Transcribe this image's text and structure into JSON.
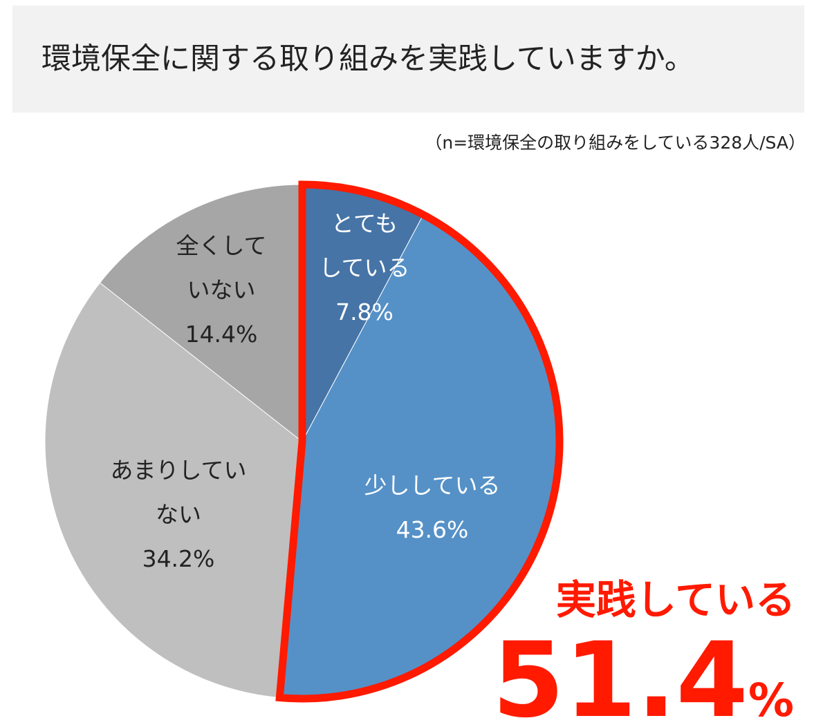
{
  "chart_data": {
    "type": "pie",
    "title": "環境保全に関する取り組みを実践していますか。",
    "subtitle": "（n=環境保全の取り組みをしている328人/SA）",
    "categories": [
      "とても\nしている",
      "少ししている",
      "あまりしてい\nない",
      "全くして\nいない"
    ],
    "values": [
      7.8,
      43.6,
      34.2,
      14.4
    ],
    "value_labels": [
      "7.8%",
      "43.6%",
      "34.2%",
      "14.4%"
    ],
    "colors": [
      "#4674a6",
      "#5591c7",
      "#bfbfbf",
      "#a6a6a6"
    ],
    "label_colors": [
      "#ffffff",
      "#ffffff",
      "#222222",
      "#222222"
    ],
    "highlight": {
      "label": "実践している",
      "value": 51.4,
      "unit": "%",
      "color": "#ff1a00",
      "slices": 2
    }
  }
}
